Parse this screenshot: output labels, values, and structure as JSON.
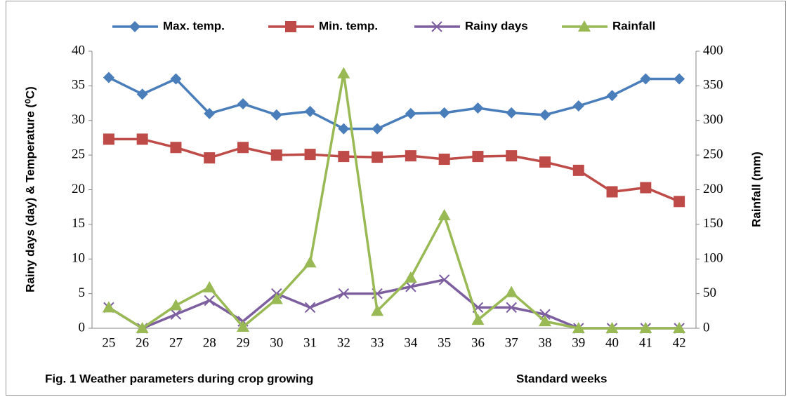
{
  "chart_data": {
    "type": "line",
    "categories": [
      "25",
      "26",
      "27",
      "28",
      "29",
      "30",
      "31",
      "32",
      "33",
      "34",
      "35",
      "36",
      "37",
      "38",
      "39",
      "40",
      "41",
      "42"
    ],
    "y_label": "Rainy days (day) & Temperature (⁰C)",
    "y2_label": "Rainfall (mm)",
    "x_label": "Standard weeks",
    "caption": "Fig. 1 Weather parameters during crop growing",
    "ylim": [
      0,
      40
    ],
    "yticks": [
      0,
      5,
      10,
      15,
      20,
      25,
      30,
      35,
      40
    ],
    "y2lim": [
      0,
      400
    ],
    "y2ticks": [
      0,
      50,
      100,
      150,
      200,
      250,
      300,
      350,
      400
    ],
    "series": [
      {
        "name": "Max. temp.",
        "color": "#4a7ebb",
        "marker": "diamond",
        "values": [
          36.2,
          33.8,
          36.0,
          31.0,
          32.4,
          30.8,
          31.3,
          28.8,
          28.8,
          31.0,
          31.1,
          31.8,
          31.1,
          30.8,
          32.1,
          33.6,
          36.0,
          36.0
        ]
      },
      {
        "name": "Min. temp.",
        "color": "#be4b48",
        "marker": "square",
        "values": [
          27.3,
          27.3,
          26.1,
          24.6,
          26.1,
          25.0,
          25.1,
          24.8,
          24.7,
          24.9,
          24.4,
          24.8,
          24.9,
          24.0,
          22.8,
          19.7,
          20.3,
          18.3
        ]
      },
      {
        "name": "Rainy days",
        "color": "#7d5fa0",
        "marker": "x",
        "values": [
          3,
          0,
          2,
          4,
          1,
          5,
          3,
          5,
          5,
          6,
          7,
          3,
          3,
          2,
          0,
          0,
          0,
          0
        ]
      },
      {
        "name": "Rainfall",
        "color": "#98b954",
        "marker": "triangle",
        "axis": "y2",
        "values": [
          30,
          0,
          33,
          59,
          2,
          42,
          95,
          368,
          25,
          73,
          163,
          12,
          52,
          10,
          0,
          0,
          0,
          0
        ]
      }
    ]
  }
}
